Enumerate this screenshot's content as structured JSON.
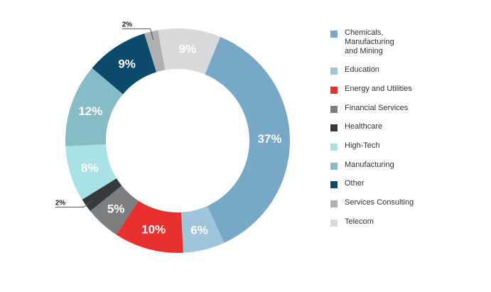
{
  "chart_data": {
    "type": "pie",
    "title": "",
    "categories": [
      "Chemicals,\nManufacturing\nand Mining",
      "Education",
      "Energy and Utilities",
      "Financial Services",
      "Healthcare",
      "High-Tech",
      "Manufacturing",
      "Other",
      "Services Consulting",
      "Telecom"
    ],
    "values": [
      37,
      6,
      10,
      5,
      2,
      8,
      12,
      9,
      2,
      9
    ],
    "labels": [
      "37%",
      "6%",
      "10%",
      "5%",
      "2%",
      "8%",
      "12%",
      "9%",
      "2%",
      "9%"
    ],
    "colors": [
      "#77a8c8",
      "#9ec5d9",
      "#e8302e",
      "#7d7e80",
      "#363a3f",
      "#a8e1e6",
      "#86bcc5",
      "#0b4a6b",
      "#aeb0b1",
      "#d8d9da"
    ],
    "donut": true,
    "legend": "right"
  }
}
